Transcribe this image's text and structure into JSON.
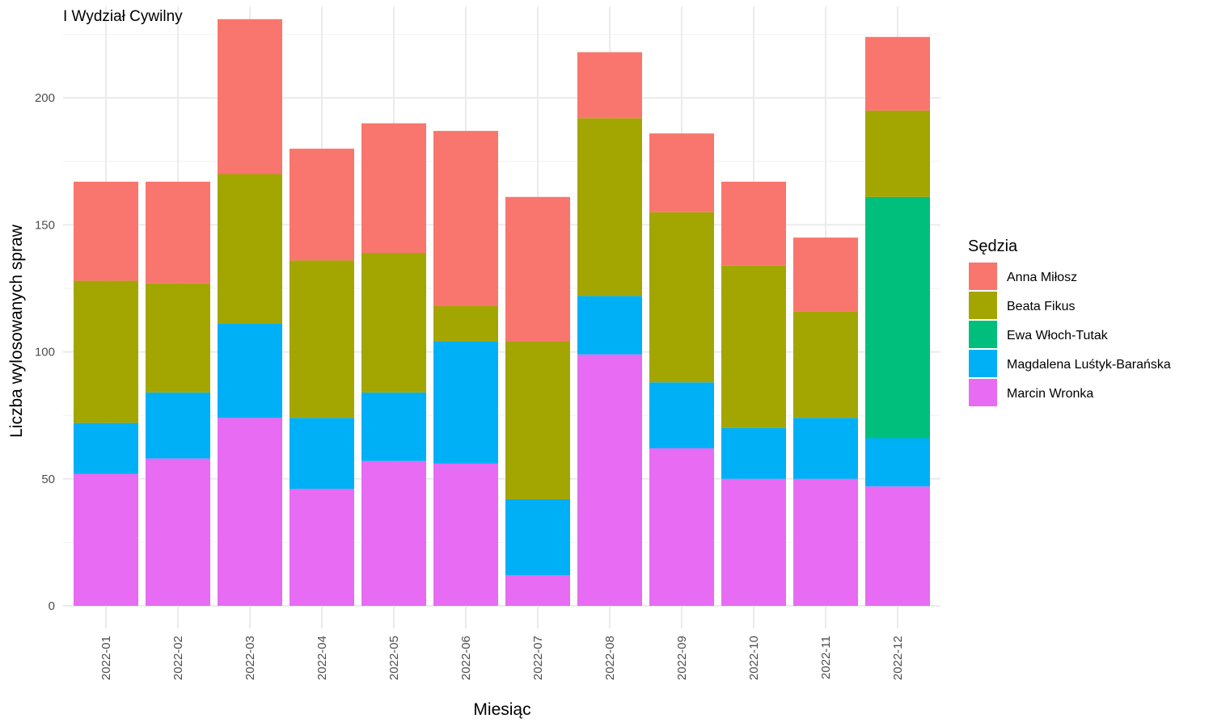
{
  "chart_data": {
    "type": "bar",
    "stacked": true,
    "title": "I Wydział Cywilny",
    "xlabel": "Miesiąc",
    "ylabel": "Liczba wylosowanych spraw",
    "ylim": [
      0,
      236
    ],
    "yticks": [
      0,
      50,
      100,
      150,
      200
    ],
    "grid": true,
    "legend_position": "right",
    "legend_title": "Sędzia",
    "categories": [
      "2022-01",
      "2022-02",
      "2022-03",
      "2022-04",
      "2022-05",
      "2022-06",
      "2022-07",
      "2022-08",
      "2022-09",
      "2022-10",
      "2022-11",
      "2022-12"
    ],
    "series": [
      {
        "name": "Marcin Wronka",
        "color": "#E76BF3",
        "values": [
          52,
          58,
          74,
          46,
          57,
          56,
          12,
          99,
          62,
          50,
          50,
          47
        ]
      },
      {
        "name": "Magdalena Luśtyk-Barańska",
        "color": "#00B0F6",
        "values": [
          20,
          26,
          37,
          28,
          27,
          48,
          30,
          23,
          26,
          20,
          24,
          19
        ]
      },
      {
        "name": "Ewa Włoch-Tutak",
        "color": "#00BF7D",
        "values": [
          0,
          0,
          0,
          0,
          0,
          0,
          0,
          0,
          0,
          0,
          0,
          95
        ]
      },
      {
        "name": "Beata Fikus",
        "color": "#A3A500",
        "values": [
          56,
          43,
          59,
          62,
          55,
          14,
          62,
          70,
          67,
          64,
          42,
          34
        ]
      },
      {
        "name": "Anna Miłosz",
        "color": "#F8766D",
        "values": [
          39,
          40,
          61,
          44,
          51,
          69,
          57,
          26,
          31,
          33,
          29,
          29
        ]
      }
    ],
    "legend_order": [
      "Anna Miłosz",
      "Beata Fikus",
      "Ewa Włoch-Tutak",
      "Magdalena Luśtyk-Barańska",
      "Marcin Wronka"
    ]
  }
}
